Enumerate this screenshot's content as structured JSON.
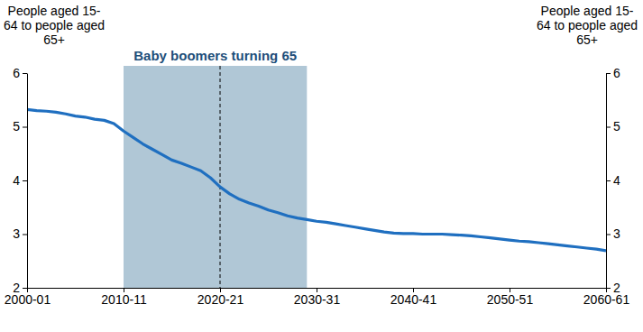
{
  "chart_data": {
    "type": "line",
    "y_label": [
      "People aged 15-",
      "64 to people aged",
      "65+"
    ],
    "y2_label": [
      "People aged 15-",
      "64 to people aged",
      "65+"
    ],
    "x": [
      2000,
      2001,
      2002,
      2003,
      2004,
      2005,
      2006,
      2007,
      2008,
      2009,
      2010,
      2011,
      2012,
      2013,
      2014,
      2015,
      2016,
      2017,
      2018,
      2019,
      2020,
      2021,
      2022,
      2023,
      2024,
      2025,
      2026,
      2027,
      2028,
      2029,
      2030,
      2031,
      2032,
      2033,
      2034,
      2035,
      2036,
      2037,
      2038,
      2039,
      2040,
      2041,
      2042,
      2043,
      2044,
      2045,
      2046,
      2047,
      2048,
      2049,
      2050,
      2051,
      2052,
      2053,
      2054,
      2055,
      2056,
      2057,
      2058,
      2059,
      2060
    ],
    "series": [
      {
        "color": "#1f6fc0",
        "values": [
          5.32,
          5.3,
          5.29,
          5.27,
          5.24,
          5.2,
          5.18,
          5.14,
          5.12,
          5.06,
          4.92,
          4.8,
          4.68,
          4.58,
          4.48,
          4.38,
          4.32,
          4.25,
          4.18,
          4.05,
          3.88,
          3.75,
          3.65,
          3.58,
          3.52,
          3.45,
          3.4,
          3.34,
          3.3,
          3.27,
          3.24,
          3.22,
          3.19,
          3.16,
          3.13,
          3.1,
          3.07,
          3.04,
          3.02,
          3.01,
          3.01,
          3.0,
          3.0,
          3.0,
          2.99,
          2.98,
          2.97,
          2.95,
          2.93,
          2.91,
          2.89,
          2.87,
          2.86,
          2.84,
          2.82,
          2.8,
          2.78,
          2.76,
          2.74,
          2.72,
          2.69
        ]
      }
    ],
    "xlim": [
      2000,
      2060
    ],
    "xticks": [
      {
        "value": 2000,
        "label": "2000-01"
      },
      {
        "value": 2010,
        "label": "2010-11"
      },
      {
        "value": 2020,
        "label": "2020-21"
      },
      {
        "value": 2030,
        "label": "2030-31"
      },
      {
        "value": 2040,
        "label": "2040-41"
      },
      {
        "value": 2050,
        "label": "2050-51"
      },
      {
        "value": 2060,
        "label": "2060-61"
      }
    ],
    "ylim": [
      2,
      6
    ],
    "yticks": [
      2,
      3,
      4,
      5,
      6
    ],
    "y2lim": [
      2,
      6
    ],
    "y2ticks": [
      2,
      3,
      4,
      5,
      6
    ],
    "grid": false,
    "annotations": [
      {
        "type": "band",
        "text": "Baby boomers turning 65",
        "x_start": 2010,
        "x_end": 2029,
        "color": "#b0c7d6"
      },
      {
        "type": "vline",
        "x": 2020,
        "line_style": "dashed",
        "color": "#000000"
      }
    ]
  }
}
